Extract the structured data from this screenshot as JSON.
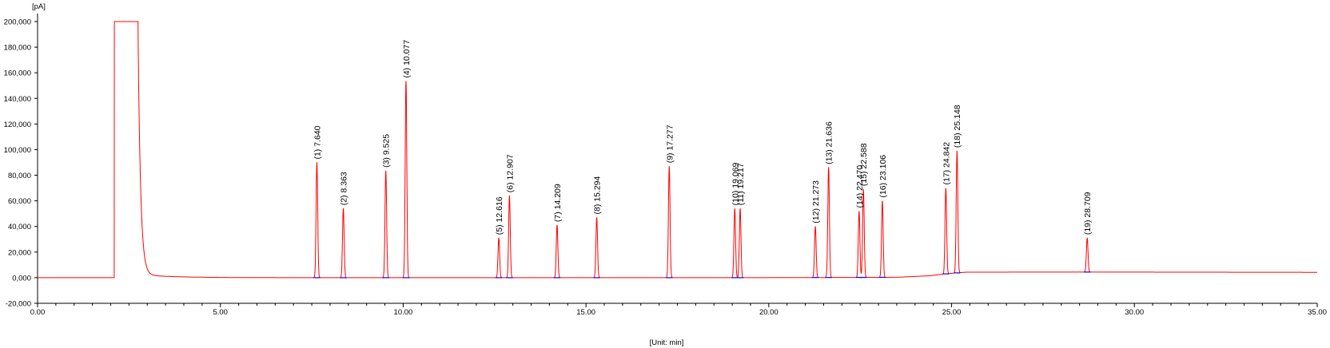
{
  "chart_data": {
    "type": "line",
    "ylabel": "[pA]",
    "xlabel": "[Unit: min]",
    "xlim": [
      0,
      35
    ],
    "ylim": [
      -20000,
      200000
    ],
    "x_ticks": [
      "0.00",
      "5.00",
      "10.00",
      "15.00",
      "20.00",
      "25.00",
      "30.00",
      "35.00"
    ],
    "x_tick_values": [
      0,
      5,
      10,
      15,
      20,
      25,
      30,
      35
    ],
    "y_ticks": [
      "-20,000",
      "0,000",
      "20,000",
      "40,000",
      "60,000",
      "80,000",
      "100,000",
      "120,000",
      "140,000",
      "160,000",
      "180,000",
      "200,000"
    ],
    "y_tick_values": [
      -20000,
      0,
      20000,
      40000,
      60000,
      80000,
      100000,
      120000,
      140000,
      160000,
      180000,
      200000
    ],
    "solvent_peak": {
      "start": 2.1,
      "end": 2.75,
      "height": 200000
    },
    "baseline": [
      {
        "x": 0,
        "y": 0
      },
      {
        "x": 19.5,
        "y": 0
      },
      {
        "x": 23.5,
        "y": 300
      },
      {
        "x": 24.4,
        "y": 1500
      },
      {
        "x": 24.9,
        "y": 3200
      },
      {
        "x": 25.4,
        "y": 4300
      },
      {
        "x": 28.5,
        "y": 4400
      },
      {
        "x": 35,
        "y": 4200
      }
    ],
    "peaks": [
      {
        "label": "(1) 7.640",
        "rt": 7.64,
        "height": 90000
      },
      {
        "label": "(2) 8.363",
        "rt": 8.363,
        "height": 54000
      },
      {
        "label": "(3) 9.525",
        "rt": 9.525,
        "height": 83500
      },
      {
        "label": "(4) 10.077",
        "rt": 10.077,
        "height": 153500
      },
      {
        "label": "(5) 12.616",
        "rt": 12.616,
        "height": 31000
      },
      {
        "label": "(6) 12.907",
        "rt": 12.907,
        "height": 64000
      },
      {
        "label": "(7) 14.209",
        "rt": 14.209,
        "height": 41000
      },
      {
        "label": "(8) 15.294",
        "rt": 15.294,
        "height": 47000
      },
      {
        "label": "(9) 17.277",
        "rt": 17.277,
        "height": 87000
      },
      {
        "label": "(10) 19.069",
        "rt": 19.069,
        "height": 54000
      },
      {
        "label": "(11) 19.217",
        "rt": 19.217,
        "height": 54000
      },
      {
        "label": "(12) 21.273",
        "rt": 21.273,
        "height": 40000
      },
      {
        "label": "(13) 21.636",
        "rt": 21.636,
        "height": 86000
      },
      {
        "label": "(14) 22.470",
        "rt": 22.47,
        "height": 52000
      },
      {
        "label": "(15) 22.588",
        "rt": 22.588,
        "height": 69000
      },
      {
        "label": "(16) 23.106",
        "rt": 23.106,
        "height": 60000
      },
      {
        "label": "(17) 24.842",
        "rt": 24.842,
        "height": 70000
      },
      {
        "label": "(18) 25.148",
        "rt": 25.148,
        "height": 99000
      },
      {
        "label": "(19) 28.709",
        "rt": 28.709,
        "height": 31000
      }
    ],
    "colors": {
      "signal": "#ff0000",
      "baseline_marker": "#0000ff",
      "axis": "#000000"
    }
  }
}
